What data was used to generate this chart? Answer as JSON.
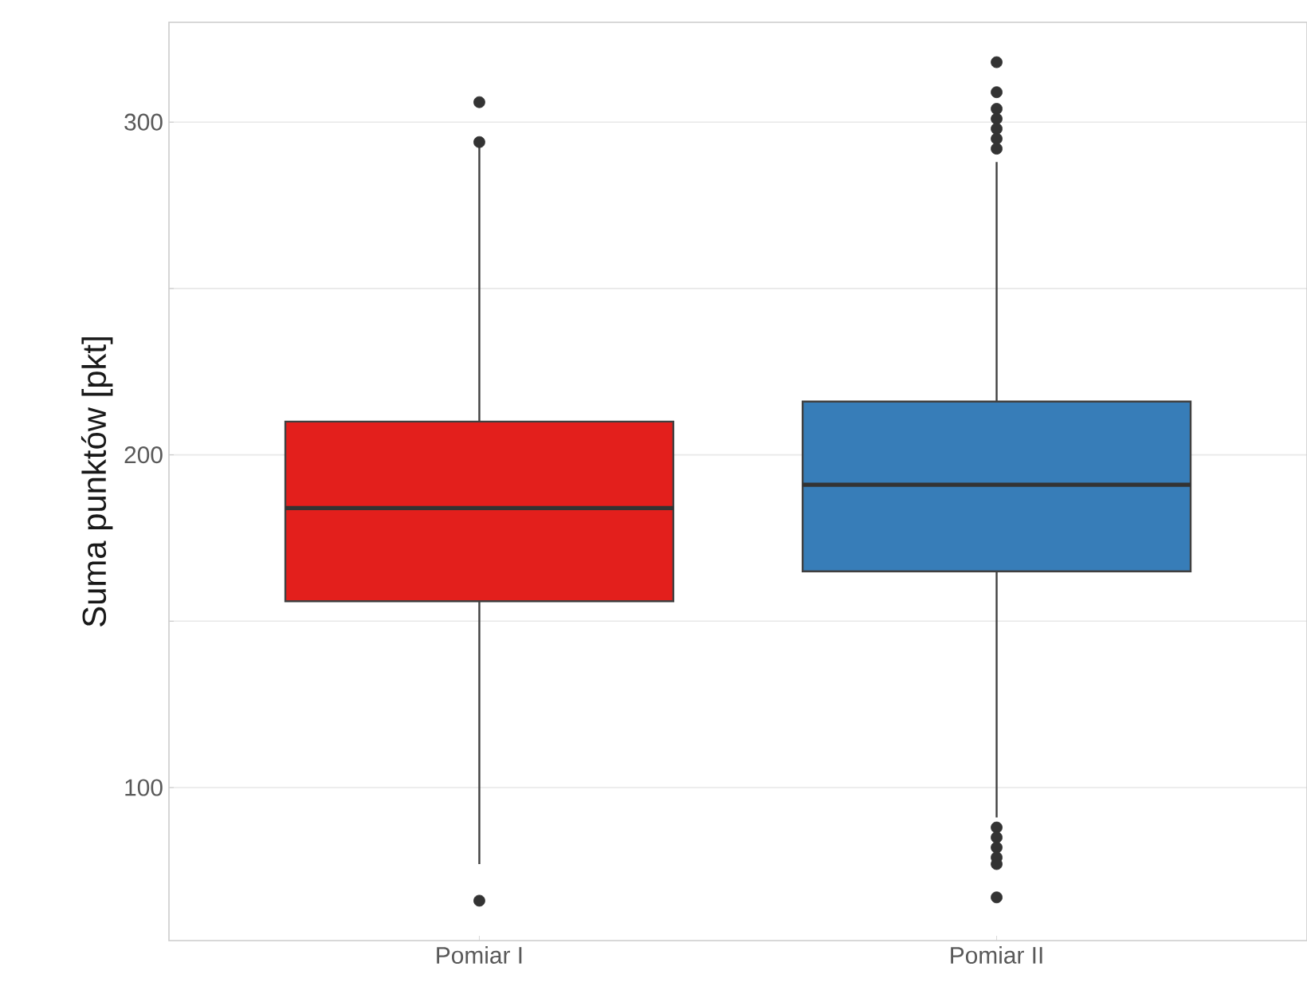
{
  "chart_data": {
    "type": "box",
    "ylabel": "Suma punktów [pkt]",
    "categories": [
      "Pomiar I",
      "Pomiar II"
    ],
    "colors": [
      "#e31f1c",
      "#377db8"
    ],
    "boxes": [
      {
        "low": 77,
        "q1": 156,
        "median": 184,
        "q3": 210,
        "high": 293,
        "outliers": [
          306,
          294,
          66
        ]
      },
      {
        "low": 91,
        "q1": 165,
        "median": 191,
        "q3": 216,
        "high": 288,
        "outliers": [
          318,
          309,
          304,
          301,
          298,
          295,
          292,
          88,
          85,
          82,
          79,
          77,
          67
        ]
      }
    ],
    "ylim": [
      54,
      330
    ],
    "yticks": [
      100,
      {
        "value": 150,
        "label": null
      },
      200,
      {
        "value": 250,
        "label": null
      },
      300
    ],
    "grid": "y"
  }
}
